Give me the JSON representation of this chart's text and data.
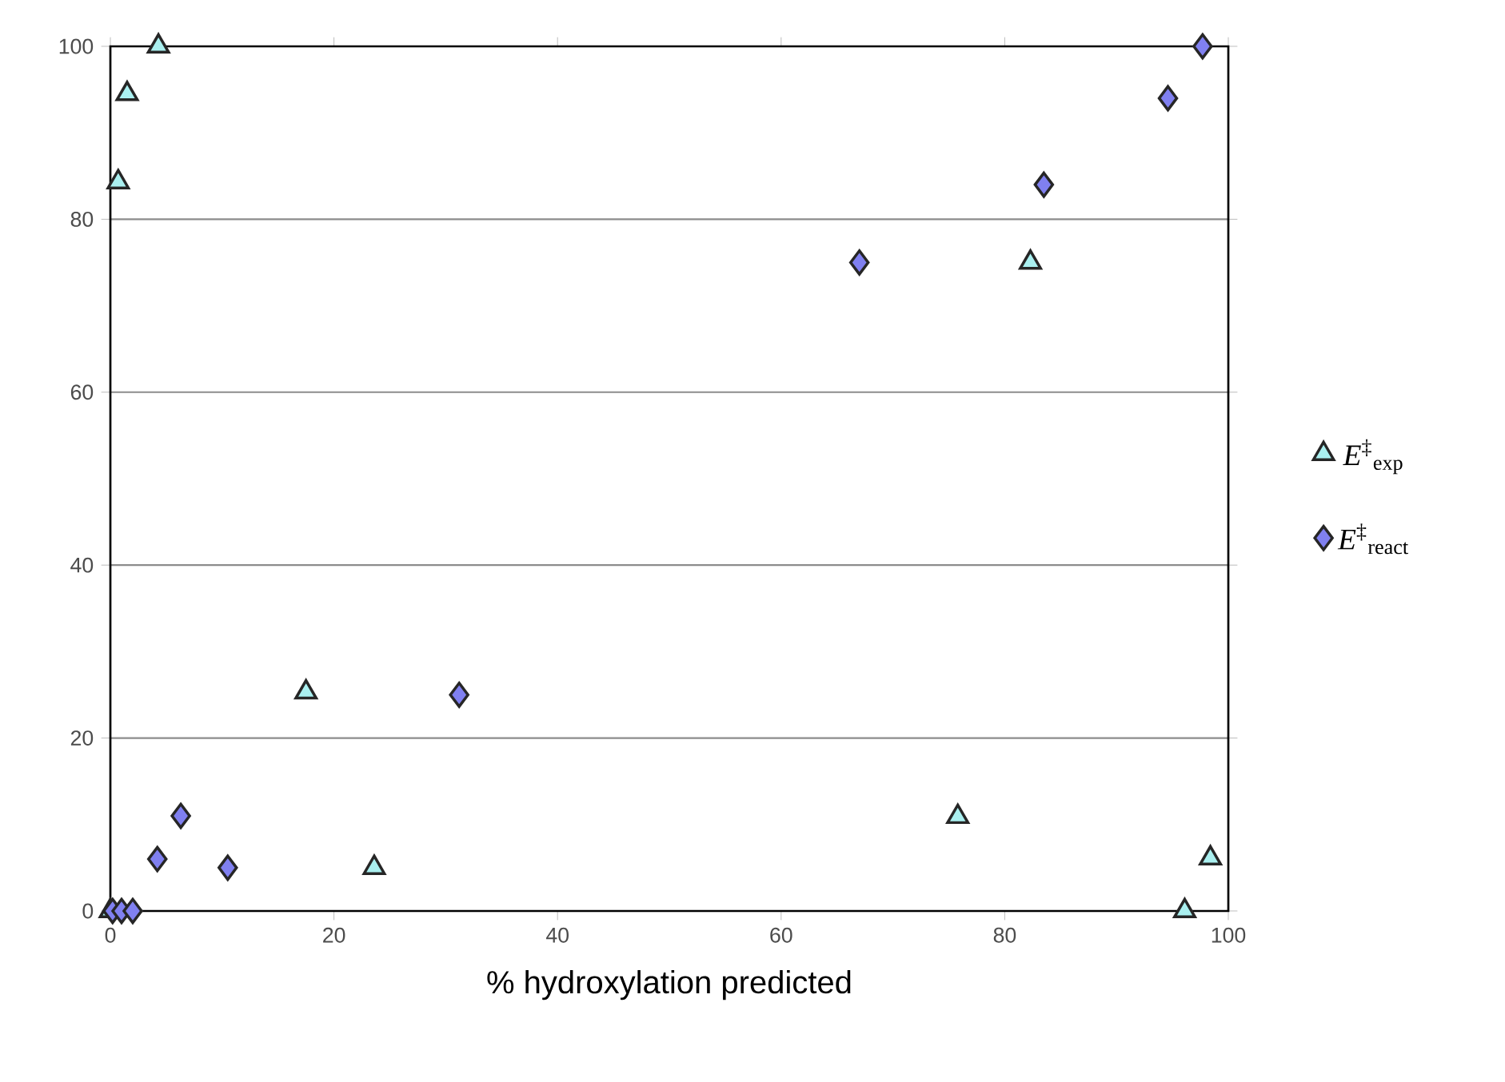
{
  "chart_data": {
    "type": "scatter",
    "xlabel": "% hydroxylation predicted",
    "xlim": [
      0,
      100
    ],
    "xticks": [
      0,
      20,
      40,
      60,
      80,
      100
    ],
    "ylim": [
      0,
      100
    ],
    "yticks": [
      0,
      20,
      40,
      60,
      80,
      100
    ],
    "grid": "y",
    "legend": "right",
    "series": [
      {
        "name": "*E*$^{‡}$$_{exp}$",
        "color": "#aaf0f0",
        "marker": "triangle",
        "x": [
          4.3,
          1.5,
          0.7,
          17.5,
          23.6,
          75.8,
          82.3,
          96.1,
          98.4,
          0
        ],
        "values": [
          100,
          94.5,
          84.3,
          25.3,
          5,
          10.9,
          75,
          0,
          6.1,
          0
        ]
      },
      {
        "name": "*E*$^{‡}$$_{react}$",
        "color": "#8080f0",
        "marker": "diamond",
        "x": [
          0.2,
          1,
          2,
          4.2,
          6.3,
          10.5,
          31.2,
          67,
          83.5,
          94.6,
          97.7
        ],
        "values": [
          0,
          0,
          0,
          6,
          11,
          5,
          25,
          75,
          84,
          94,
          100
        ]
      }
    ]
  }
}
